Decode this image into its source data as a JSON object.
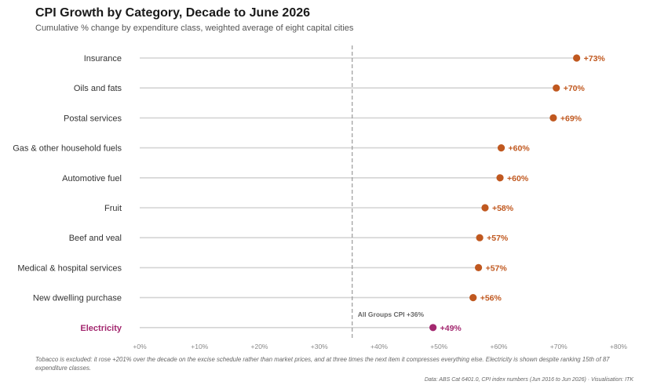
{
  "header": {
    "title": "CPI Growth by Category, Decade to June 2026",
    "subtitle": "Cumulative % change by expenditure class, weighted average of eight capital cities"
  },
  "footer": {
    "note": "Tobacco is excluded: it rose +201% over the decade on the excise schedule rather than market prices, and at three times the next item it compresses everything else. Electricity is shown despite ranking 15th of 87 expenditure classes.",
    "source": "Data: ABS Cat 6401.0, CPI index numbers (Jun 2016 to Jun 2026)  ·  Visualisation: ITK"
  },
  "chart_data": {
    "type": "lollipop",
    "title": "CPI Growth by Category, Decade to June 2026",
    "subtitle": "Cumulative % change by expenditure class, weighted average of eight capital cities",
    "xlabel": "",
    "ylabel": "",
    "xlim": [
      0,
      80
    ],
    "x_ticks": [
      {
        "value": 0,
        "label": "+0%"
      },
      {
        "value": 10,
        "label": "+10%"
      },
      {
        "value": 20,
        "label": "+20%"
      },
      {
        "value": 30,
        "label": "+30%"
      },
      {
        "value": 40,
        "label": "+40%"
      },
      {
        "value": 50,
        "label": "+50%"
      },
      {
        "value": 60,
        "label": "+60%"
      },
      {
        "value": 70,
        "label": "+70%"
      },
      {
        "value": 80,
        "label": "+80%"
      }
    ],
    "categories": [
      {
        "name": "Insurance",
        "value": 73,
        "label": "+73%",
        "highlight": false
      },
      {
        "name": "Oils and fats",
        "value": 69.6,
        "label": "+70%",
        "highlight": false
      },
      {
        "name": "Postal services",
        "value": 69.1,
        "label": "+69%",
        "highlight": false
      },
      {
        "name": "Gas & other household fuels",
        "value": 60.4,
        "label": "+60%",
        "highlight": false
      },
      {
        "name": "Automotive fuel",
        "value": 60.2,
        "label": "+60%",
        "highlight": false
      },
      {
        "name": "Fruit",
        "value": 57.7,
        "label": "+58%",
        "highlight": false
      },
      {
        "name": "Beef and veal",
        "value": 56.8,
        "label": "+57%",
        "highlight": false
      },
      {
        "name": "Medical & hospital services",
        "value": 56.6,
        "label": "+57%",
        "highlight": false
      },
      {
        "name": "New dwelling purchase",
        "value": 55.7,
        "label": "+56%",
        "highlight": false
      },
      {
        "name": "Electricity",
        "value": 49,
        "label": "+49%",
        "highlight": true
      }
    ],
    "reference_line": {
      "value": 35.5,
      "label": "All Groups CPI  +36%",
      "style": "dashed"
    },
    "grid": false,
    "colors": {
      "default_dot": "#c0581f",
      "highlight": "#a3286f",
      "stem": "#d4d4d4",
      "reference": "#9a9a9a"
    }
  }
}
